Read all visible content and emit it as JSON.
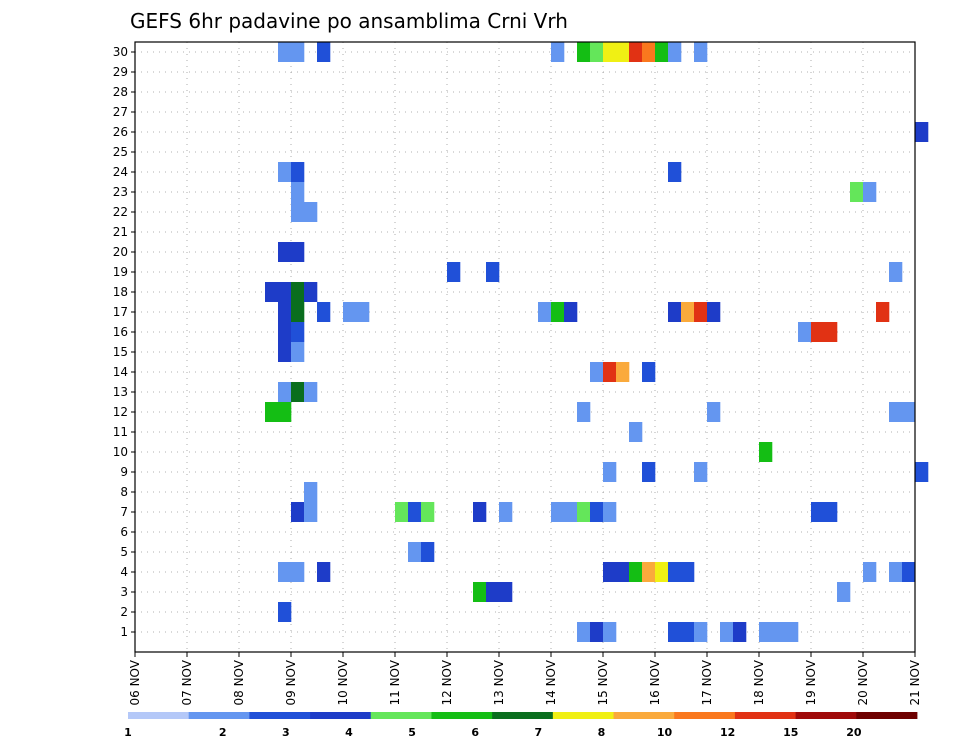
{
  "chart_data": {
    "type": "heatmap",
    "title": "GEFS 6hr padavine po ansamblima Crni Vrh",
    "xlabel": "",
    "ylabel": "",
    "x_ticks": [
      "06 NOV",
      "07 NOV",
      "08 NOV",
      "09 NOV",
      "10 NOV",
      "11 NOV",
      "12 NOV",
      "13 NOV",
      "14 NOV",
      "15 NOV",
      "16 NOV",
      "17 NOV",
      "18 NOV",
      "19 NOV",
      "20 NOV",
      "21 NOV"
    ],
    "y_range": [
      0,
      30
    ],
    "y_ticks": [
      1,
      2,
      3,
      4,
      5,
      6,
      7,
      8,
      9,
      10,
      11,
      12,
      13,
      14,
      15,
      16,
      17,
      18,
      19,
      20,
      21,
      22,
      23,
      24,
      25,
      26,
      27,
      28,
      29,
      30
    ],
    "steps_per_day": 4,
    "grid": true,
    "legend": {
      "position": "bottom",
      "labels": [
        "1",
        "2",
        "3",
        "4",
        "5",
        "6",
        "7",
        "8",
        "10",
        "12",
        "15",
        "20"
      ],
      "colors": [
        "#b4c8f8",
        "#6496f0",
        "#2050d8",
        "#1e3cc8",
        "#64e65a",
        "#14be14",
        "#0a6e1e",
        "#f0f014",
        "#faaa3c",
        "#fa781e",
        "#e13214",
        "#a00a0a",
        "#6e0000"
      ]
    },
    "cells": [
      {
        "m": 30,
        "t": "08 NOV 18",
        "l": 1
      },
      {
        "m": 30,
        "t": "09 NOV 00",
        "l": 1
      },
      {
        "m": 30,
        "t": "09 NOV 12",
        "l": 2
      },
      {
        "m": 30,
        "t": "14 NOV 00",
        "l": 1
      },
      {
        "m": 30,
        "t": "14 NOV 12",
        "l": 5
      },
      {
        "m": 30,
        "t": "14 NOV 18",
        "l": 4
      },
      {
        "m": 30,
        "t": "15 NOV 00",
        "l": 7
      },
      {
        "m": 30,
        "t": "15 NOV 06",
        "l": 7
      },
      {
        "m": 30,
        "t": "15 NOV 12",
        "l": 10
      },
      {
        "m": 30,
        "t": "15 NOV 18",
        "l": 9
      },
      {
        "m": 30,
        "t": "16 NOV 00",
        "l": 5
      },
      {
        "m": 30,
        "t": "16 NOV 06",
        "l": 1
      },
      {
        "m": 30,
        "t": "16 NOV 18",
        "l": 1
      },
      {
        "m": 26,
        "t": "21 NOV 00",
        "l": 3
      },
      {
        "m": 24,
        "t": "08 NOV 18",
        "l": 1
      },
      {
        "m": 24,
        "t": "09 NOV 00",
        "l": 2
      },
      {
        "m": 24,
        "t": "16 NOV 06",
        "l": 2
      },
      {
        "m": 23,
        "t": "09 NOV 00",
        "l": 1
      },
      {
        "m": 23,
        "t": "19 NOV 18",
        "l": 4
      },
      {
        "m": 23,
        "t": "20 NOV 00",
        "l": 1
      },
      {
        "m": 22,
        "t": "09 NOV 00",
        "l": 1
      },
      {
        "m": 22,
        "t": "09 NOV 06",
        "l": 1
      },
      {
        "m": 20,
        "t": "08 NOV 18",
        "l": 3
      },
      {
        "m": 20,
        "t": "09 NOV 00",
        "l": 3
      },
      {
        "m": 19,
        "t": "12 NOV 00",
        "l": 2
      },
      {
        "m": 19,
        "t": "12 NOV 18",
        "l": 2
      },
      {
        "m": 19,
        "t": "20 NOV 12",
        "l": 1
      },
      {
        "m": 18,
        "t": "08 NOV 12",
        "l": 3
      },
      {
        "m": 18,
        "t": "08 NOV 18",
        "l": 3
      },
      {
        "m": 18,
        "t": "09 NOV 00",
        "l": 6
      },
      {
        "m": 18,
        "t": "09 NOV 06",
        "l": 3
      },
      {
        "m": 17,
        "t": "08 NOV 18",
        "l": 3
      },
      {
        "m": 17,
        "t": "09 NOV 00",
        "l": 6
      },
      {
        "m": 17,
        "t": "09 NOV 12",
        "l": 2
      },
      {
        "m": 17,
        "t": "10 NOV 00",
        "l": 1
      },
      {
        "m": 17,
        "t": "10 NOV 06",
        "l": 1
      },
      {
        "m": 17,
        "t": "13 NOV 18",
        "l": 1
      },
      {
        "m": 17,
        "t": "14 NOV 00",
        "l": 5
      },
      {
        "m": 17,
        "t": "14 NOV 06",
        "l": 3
      },
      {
        "m": 17,
        "t": "16 NOV 06",
        "l": 3
      },
      {
        "m": 17,
        "t": "16 NOV 12",
        "l": 8
      },
      {
        "m": 17,
        "t": "16 NOV 18",
        "l": 10
      },
      {
        "m": 17,
        "t": "17 NOV 00",
        "l": 3
      },
      {
        "m": 17,
        "t": "20 NOV 06",
        "l": 10
      },
      {
        "m": 16,
        "t": "08 NOV 18",
        "l": 3
      },
      {
        "m": 16,
        "t": "09 NOV 00",
        "l": 2
      },
      {
        "m": 16,
        "t": "18 NOV 18",
        "l": 1
      },
      {
        "m": 16,
        "t": "19 NOV 00",
        "l": 10
      },
      {
        "m": 16,
        "t": "19 NOV 06",
        "l": 10
      },
      {
        "m": 15,
        "t": "08 NOV 18",
        "l": 3
      },
      {
        "m": 15,
        "t": "09 NOV 00",
        "l": 1
      },
      {
        "m": 14,
        "t": "14 NOV 18",
        "l": 1
      },
      {
        "m": 14,
        "t": "15 NOV 00",
        "l": 10
      },
      {
        "m": 14,
        "t": "15 NOV 06",
        "l": 8
      },
      {
        "m": 14,
        "t": "15 NOV 18",
        "l": 2
      },
      {
        "m": 13,
        "t": "08 NOV 18",
        "l": 1
      },
      {
        "m": 13,
        "t": "09 NOV 00",
        "l": 6
      },
      {
        "m": 13,
        "t": "09 NOV 06",
        "l": 1
      },
      {
        "m": 12,
        "t": "08 NOV 12",
        "l": 5
      },
      {
        "m": 12,
        "t": "08 NOV 18",
        "l": 5
      },
      {
        "m": 12,
        "t": "14 NOV 12",
        "l": 1
      },
      {
        "m": 12,
        "t": "17 NOV 00",
        "l": 1
      },
      {
        "m": 12,
        "t": "20 NOV 12",
        "l": 1
      },
      {
        "m": 12,
        "t": "20 NOV 18",
        "l": 1
      },
      {
        "m": 11,
        "t": "15 NOV 12",
        "l": 1
      },
      {
        "m": 10,
        "t": "18 NOV 00",
        "l": 5
      },
      {
        "m": 9,
        "t": "15 NOV 00",
        "l": 1
      },
      {
        "m": 9,
        "t": "15 NOV 18",
        "l": 2
      },
      {
        "m": 9,
        "t": "16 NOV 18",
        "l": 1
      },
      {
        "m": 9,
        "t": "21 NOV 00",
        "l": 2
      },
      {
        "m": 8,
        "t": "09 NOV 06",
        "l": 1
      },
      {
        "m": 7,
        "t": "09 NOV 00",
        "l": 3
      },
      {
        "m": 7,
        "t": "09 NOV 06",
        "l": 1
      },
      {
        "m": 7,
        "t": "11 NOV 00",
        "l": 4
      },
      {
        "m": 7,
        "t": "11 NOV 06",
        "l": 2
      },
      {
        "m": 7,
        "t": "11 NOV 12",
        "l": 4
      },
      {
        "m": 7,
        "t": "12 NOV 12",
        "l": 3
      },
      {
        "m": 7,
        "t": "13 NOV 00",
        "l": 1
      },
      {
        "m": 7,
        "t": "14 NOV 00",
        "l": 1
      },
      {
        "m": 7,
        "t": "14 NOV 06",
        "l": 1
      },
      {
        "m": 7,
        "t": "14 NOV 12",
        "l": 4
      },
      {
        "m": 7,
        "t": "14 NOV 18",
        "l": 2
      },
      {
        "m": 7,
        "t": "15 NOV 00",
        "l": 1
      },
      {
        "m": 7,
        "t": "19 NOV 00",
        "l": 2
      },
      {
        "m": 7,
        "t": "19 NOV 06",
        "l": 2
      },
      {
        "m": 5,
        "t": "11 NOV 06",
        "l": 1
      },
      {
        "m": 5,
        "t": "11 NOV 12",
        "l": 2
      },
      {
        "m": 4,
        "t": "08 NOV 18",
        "l": 1
      },
      {
        "m": 4,
        "t": "09 NOV 00",
        "l": 1
      },
      {
        "m": 4,
        "t": "09 NOV 12",
        "l": 3
      },
      {
        "m": 4,
        "t": "15 NOV 00",
        "l": 3
      },
      {
        "m": 4,
        "t": "15 NOV 06",
        "l": 3
      },
      {
        "m": 4,
        "t": "15 NOV 12",
        "l": 5
      },
      {
        "m": 4,
        "t": "15 NOV 18",
        "l": 8
      },
      {
        "m": 4,
        "t": "16 NOV 00",
        "l": 7
      },
      {
        "m": 4,
        "t": "16 NOV 06",
        "l": 2
      },
      {
        "m": 4,
        "t": "16 NOV 12",
        "l": 2
      },
      {
        "m": 4,
        "t": "20 NOV 00",
        "l": 1
      },
      {
        "m": 4,
        "t": "20 NOV 12",
        "l": 1
      },
      {
        "m": 4,
        "t": "20 NOV 18",
        "l": 2
      },
      {
        "m": 3,
        "t": "12 NOV 12",
        "l": 5
      },
      {
        "m": 3,
        "t": "12 NOV 18",
        "l": 3
      },
      {
        "m": 3,
        "t": "13 NOV 00",
        "l": 3
      },
      {
        "m": 3,
        "t": "19 NOV 12",
        "l": 1
      },
      {
        "m": 2,
        "t": "08 NOV 18",
        "l": 2
      },
      {
        "m": 1,
        "t": "14 NOV 12",
        "l": 1
      },
      {
        "m": 1,
        "t": "14 NOV 18",
        "l": 3
      },
      {
        "m": 1,
        "t": "15 NOV 00",
        "l": 1
      },
      {
        "m": 1,
        "t": "16 NOV 06",
        "l": 2
      },
      {
        "m": 1,
        "t": "16 NOV 12",
        "l": 2
      },
      {
        "m": 1,
        "t": "16 NOV 18",
        "l": 1
      },
      {
        "m": 1,
        "t": "17 NOV 06",
        "l": 1
      },
      {
        "m": 1,
        "t": "17 NOV 12",
        "l": 3
      },
      {
        "m": 1,
        "t": "18 NOV 00",
        "l": 1
      },
      {
        "m": 1,
        "t": "18 NOV 06",
        "l": 1
      },
      {
        "m": 1,
        "t": "18 NOV 12",
        "l": 1
      }
    ]
  }
}
